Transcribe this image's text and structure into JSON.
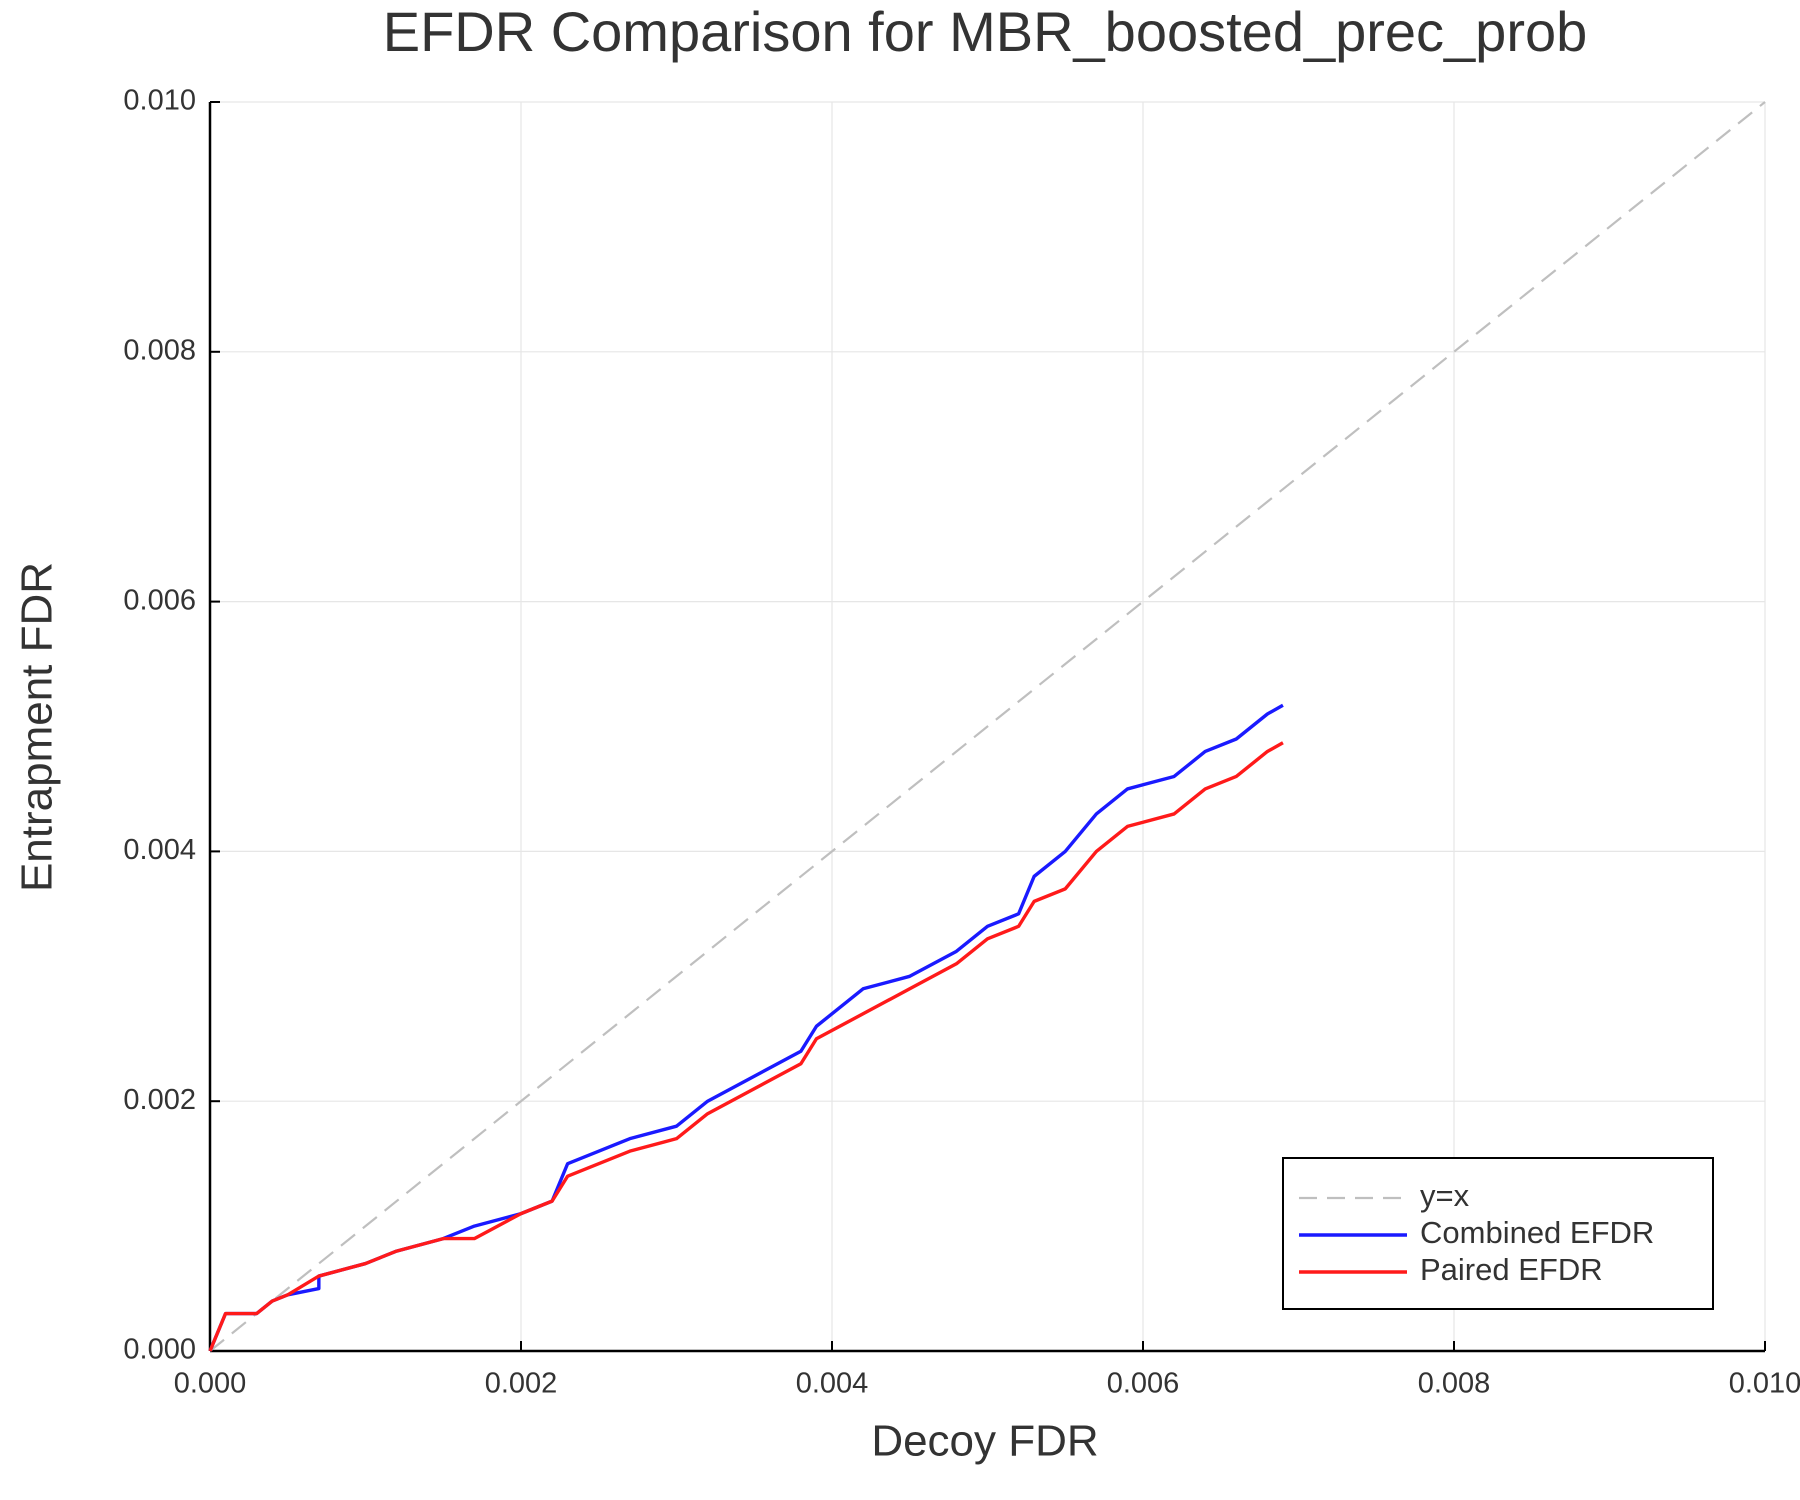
{
  "chart_data": {
    "type": "line",
    "title": "EFDR Comparison for MBR_boosted_prec_prob",
    "x_label": "Decoy FDR",
    "y_label": "Entrapment FDR",
    "xlim": [
      0,
      0.01
    ],
    "ylim": [
      0,
      0.01
    ],
    "xticks": [
      {
        "value": 0,
        "label": "0.000"
      },
      {
        "value": 0.002,
        "label": "0.002"
      },
      {
        "value": 0.004,
        "label": "0.004"
      },
      {
        "value": 0.006,
        "label": "0.006"
      },
      {
        "value": 0.008,
        "label": "0.008"
      },
      {
        "value": 0.01,
        "label": "0.010"
      }
    ],
    "yticks": [
      {
        "value": 0,
        "label": "0.000"
      },
      {
        "value": 0.002,
        "label": "0.002"
      },
      {
        "value": 0.004,
        "label": "0.004"
      },
      {
        "value": 0.006,
        "label": "0.006"
      },
      {
        "value": 0.008,
        "label": "0.008"
      },
      {
        "value": 0.01,
        "label": "0.010"
      }
    ],
    "grid": true,
    "legend": "bottom right",
    "series": [
      {
        "name": "y=x",
        "color": "#bfbfbf",
        "dash": true,
        "x": [
          0,
          0.01
        ],
        "values": [
          0,
          0.01
        ]
      },
      {
        "name": "Combined EFDR",
        "color": "#1a1aff",
        "dash": false,
        "x": [
          0,
          0.0001,
          0.0003,
          0.0004,
          0.0005,
          0.0007,
          0.0007,
          0.001,
          0.0012,
          0.0015,
          0.0017,
          0.002,
          0.0022,
          0.0023,
          0.0025,
          0.0027,
          0.003,
          0.0032,
          0.0035,
          0.0038,
          0.0039,
          0.0042,
          0.0045,
          0.0048,
          0.005,
          0.0052,
          0.0053,
          0.0055,
          0.0057,
          0.0059,
          0.0062,
          0.0064,
          0.0066,
          0.0068,
          0.0069
        ],
        "values": [
          0,
          0.0003,
          0.0003,
          0.0004,
          0.00045,
          0.0005,
          0.0006,
          0.0007,
          0.0008,
          0.0009,
          0.001,
          0.0011,
          0.0012,
          0.0015,
          0.0016,
          0.0017,
          0.0018,
          0.002,
          0.0022,
          0.0024,
          0.0026,
          0.0029,
          0.003,
          0.0032,
          0.0034,
          0.0035,
          0.0038,
          0.004,
          0.0043,
          0.0045,
          0.0046,
          0.0048,
          0.0049,
          0.0051,
          0.00517
        ]
      },
      {
        "name": "Paired EFDR",
        "color": "#ff1a1a",
        "dash": false,
        "x": [
          0,
          0.0001,
          0.0003,
          0.0004,
          0.0005,
          0.0007,
          0.001,
          0.0012,
          0.0015,
          0.0017,
          0.002,
          0.0022,
          0.0023,
          0.0025,
          0.0027,
          0.003,
          0.0032,
          0.0035,
          0.0038,
          0.0039,
          0.0042,
          0.0045,
          0.0048,
          0.005,
          0.0052,
          0.0053,
          0.0055,
          0.0057,
          0.0059,
          0.0062,
          0.0064,
          0.0066,
          0.0068,
          0.0069
        ],
        "values": [
          0,
          0.0003,
          0.0003,
          0.0004,
          0.00045,
          0.0006,
          0.0007,
          0.0008,
          0.0009,
          0.0009,
          0.0011,
          0.0012,
          0.0014,
          0.0015,
          0.0016,
          0.0017,
          0.0019,
          0.0021,
          0.0023,
          0.0025,
          0.0027,
          0.0029,
          0.0031,
          0.0033,
          0.0034,
          0.0036,
          0.0037,
          0.004,
          0.0042,
          0.0043,
          0.0045,
          0.0046,
          0.0048,
          0.00487
        ]
      }
    ]
  }
}
